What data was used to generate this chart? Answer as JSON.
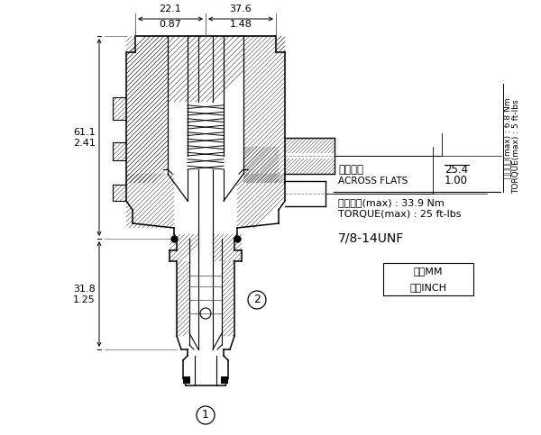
{
  "bg_color": "#ffffff",
  "annotations": {
    "across_flats_label": "對邊寬度",
    "across_flats_en": "ACROSS FLATS",
    "across_flats_val_mm": "25.4",
    "across_flats_val_inch": "1.00",
    "torque1_label": "安裝扭矩(max) : 33.9 Nm",
    "torque1_en": "TORQUE(max) : 25 ft-lbs",
    "torque2_label": "安裝扭矩(max) : 6.8 Nm",
    "torque2_en": "TORQUE(max) : 5 ft-lbs",
    "thread": "7/8-14UNF",
    "unit_mm": "毫米MM",
    "unit_inch": "英寸INCH",
    "dim_top_left_mm": "22.1",
    "dim_top_left_in": "0.87",
    "dim_top_right_mm": "37.6",
    "dim_top_right_in": "1.48",
    "dim_left_upper_mm": "61.1",
    "dim_left_upper_in": "2.41",
    "dim_left_lower_mm": "31.8",
    "dim_left_lower_in": "1.25"
  }
}
